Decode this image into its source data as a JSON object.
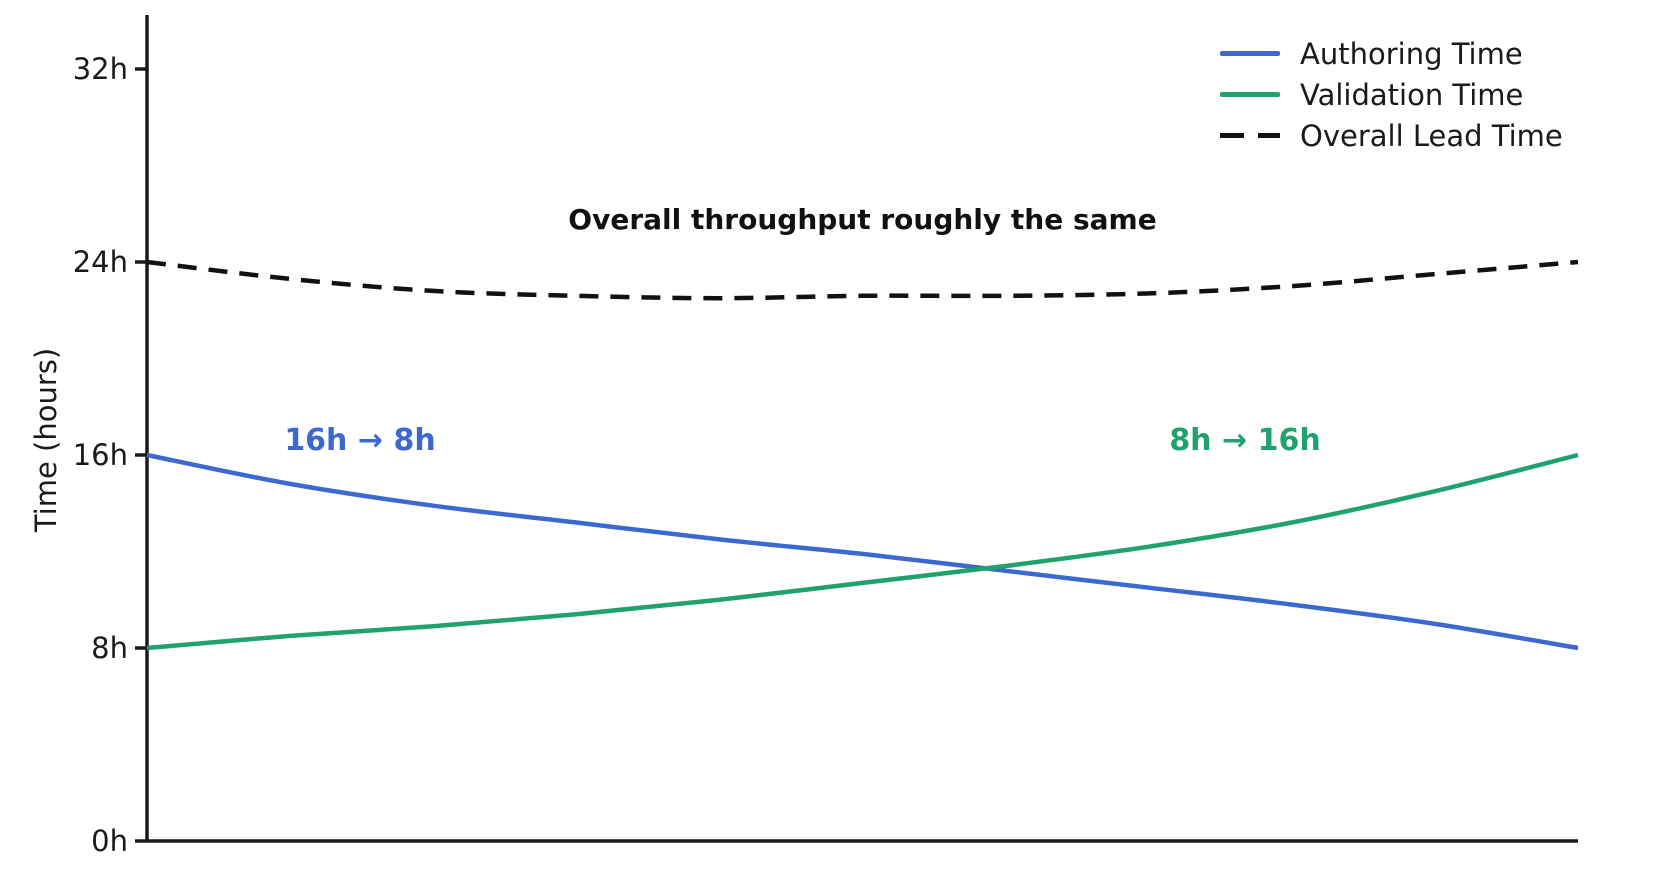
{
  "chart_data": {
    "type": "line",
    "title": "",
    "xlabel": "",
    "ylabel": "Time (hours)",
    "ylim": [
      0,
      34
    ],
    "grid": false,
    "legend_position": "upper right",
    "x_tick_labels": [],
    "x": [
      0,
      0.1,
      0.2,
      0.3,
      0.4,
      0.5,
      0.6,
      0.7,
      0.8,
      0.9,
      1.0
    ],
    "y_ticks": [
      {
        "label": "0h",
        "value": 0
      },
      {
        "label": "8h",
        "value": 8
      },
      {
        "label": "16h",
        "value": 16
      },
      {
        "label": "24h",
        "value": 24
      },
      {
        "label": "32h",
        "value": 32
      }
    ],
    "series": [
      {
        "name": "Authoring Time",
        "id": "authoring-time",
        "color": "#3b69cf",
        "style": "solid",
        "values": [
          16.0,
          14.8,
          13.9,
          13.2,
          12.5,
          11.9,
          11.2,
          10.5,
          9.8,
          9.0,
          8.0
        ]
      },
      {
        "name": "Validation Time",
        "id": "validation-time",
        "color": "#1fa26e",
        "style": "solid",
        "values": [
          8.0,
          8.5,
          8.9,
          9.4,
          10.0,
          10.7,
          11.4,
          12.2,
          13.2,
          14.5,
          16.0
        ]
      },
      {
        "name": "Overall Lead Time",
        "id": "overall-lead-time",
        "color": "#111111",
        "style": "dashed",
        "values": [
          24.0,
          23.3,
          22.8,
          22.6,
          22.5,
          22.6,
          22.6,
          22.7,
          23.0,
          23.5,
          24.0
        ]
      }
    ],
    "annotations": [
      {
        "text": "Overall throughput roughly the same",
        "color": "#111111"
      },
      {
        "text": "16h → 8h",
        "color": "#3b69cf"
      },
      {
        "text": "8h → 16h",
        "color": "#1fa26e"
      }
    ],
    "axis_color": "#1a1a1a"
  }
}
